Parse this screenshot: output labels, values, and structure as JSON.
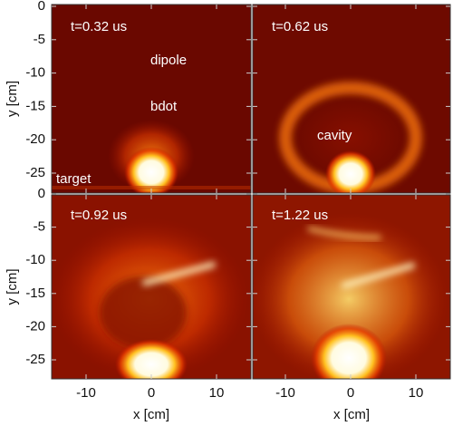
{
  "panels": [
    {
      "time_label": "t=0.32 us",
      "annotations": [
        "dipole",
        "bdot",
        "target"
      ]
    },
    {
      "time_label": "t=0.62 us",
      "annotations": [
        "cavity"
      ]
    },
    {
      "time_label": "t=0.92 us",
      "annotations": []
    },
    {
      "time_label": "t=1.22 us",
      "annotations": []
    }
  ],
  "rows": [
    {
      "y_label": "y [cm]",
      "y_ticks": [
        0,
        -5,
        -10,
        -15,
        -20,
        -25
      ]
    },
    {
      "y_label": "y [cm]",
      "y_ticks": [
        0,
        -5,
        -10,
        -15,
        -20,
        -25
      ]
    }
  ],
  "columns": [
    {
      "x_label": "x [cm]",
      "x_ticks": [
        -10,
        0,
        10
      ]
    },
    {
      "x_label": "x [cm]",
      "x_ticks": [
        -10,
        0,
        10
      ]
    }
  ]
}
